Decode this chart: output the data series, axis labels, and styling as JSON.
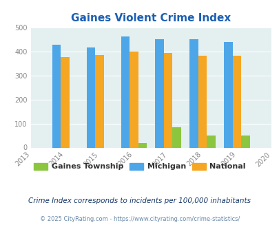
{
  "title": "Gaines Violent Crime Index",
  "all_years": [
    2013,
    2014,
    2015,
    2016,
    2017,
    2018,
    2019,
    2020
  ],
  "data_years": [
    2014,
    2015,
    2016,
    2017,
    2018,
    2019
  ],
  "gaines": [
    0,
    0,
    18,
    83,
    50,
    50
  ],
  "michigan": [
    428,
    415,
    461,
    451,
    450,
    438
  ],
  "national": [
    376,
    384,
    398,
    394,
    381,
    381
  ],
  "gaines_color": "#8cc63f",
  "michigan_color": "#4da6e8",
  "national_color": "#f5a623",
  "bg_color": "#e4f0f0",
  "title_color": "#1a5fb4",
  "ylim": [
    0,
    500
  ],
  "yticks": [
    0,
    100,
    200,
    300,
    400,
    500
  ],
  "bar_width": 0.25,
  "legend_labels": [
    "Gaines Township",
    "Michigan",
    "National"
  ],
  "subtitle": "Crime Index corresponds to incidents per 100,000 inhabitants",
  "footer": "© 2025 CityRating.com - https://www.cityrating.com/crime-statistics/",
  "subtitle_color": "#1a3a6b",
  "footer_color": "#6688aa",
  "tick_color": "#888888",
  "legend_text_color": "#333333"
}
